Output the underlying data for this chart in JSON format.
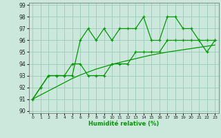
{
  "x_values": [
    0,
    1,
    2,
    3,
    4,
    5,
    6,
    7,
    8,
    9,
    10,
    11,
    12,
    13,
    14,
    15,
    16,
    17,
    18,
    19,
    20,
    21,
    22,
    23
  ],
  "line1_y": [
    91,
    92,
    93,
    93,
    93,
    93,
    96,
    97,
    96,
    97,
    96,
    97,
    97,
    97,
    98,
    96,
    96,
    98,
    98,
    97,
    97,
    96,
    95,
    96
  ],
  "line2_y": [
    91,
    92,
    93,
    93,
    93,
    94,
    94,
    93,
    93,
    93,
    94,
    94,
    94,
    95,
    95,
    95,
    95,
    96,
    96,
    96,
    96,
    96,
    96,
    96
  ],
  "line3_y": [
    91,
    91.35,
    91.7,
    92.05,
    92.4,
    92.75,
    93.05,
    93.3,
    93.55,
    93.75,
    93.95,
    94.12,
    94.28,
    94.44,
    94.6,
    94.75,
    94.88,
    95.0,
    95.1,
    95.2,
    95.3,
    95.4,
    95.5,
    95.6
  ],
  "bg_color": "#cce8dc",
  "grid_color": "#99ccbb",
  "line_color": "#009900",
  "xlabel": "Humidité relative (%)",
  "ylabel_ticks": [
    90,
    91,
    92,
    93,
    94,
    95,
    96,
    97,
    98,
    99
  ],
  "ylim": [
    89.8,
    99.2
  ],
  "xlim": [
    -0.5,
    23.5
  ]
}
